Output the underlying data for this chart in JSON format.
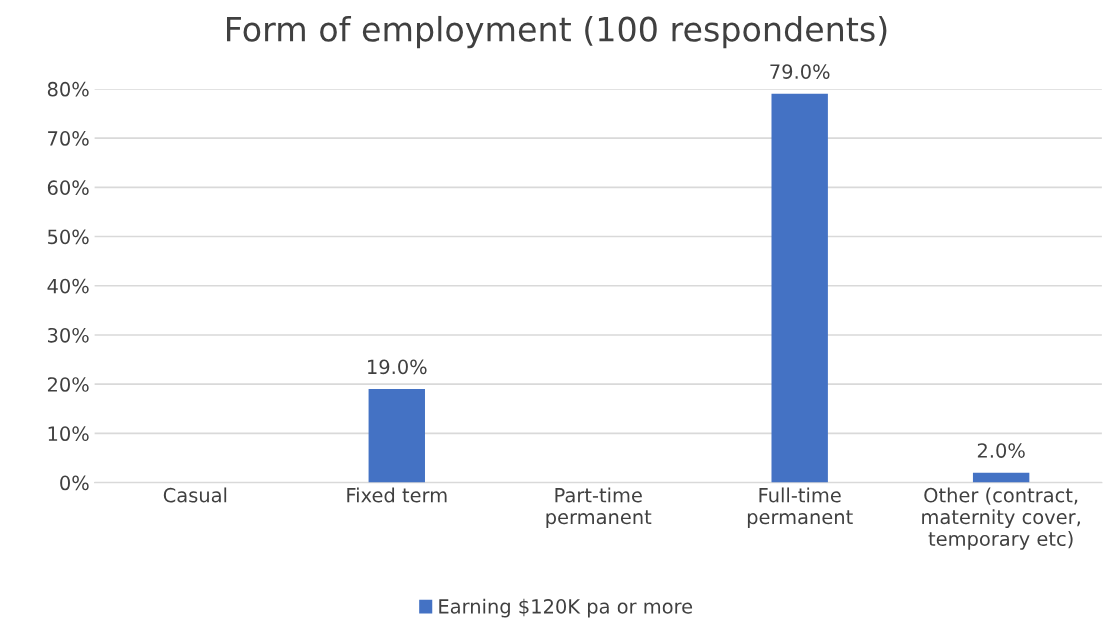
{
  "chart_data": {
    "type": "bar",
    "title": "Form of employment (100 respondents)",
    "categories": [
      "Casual",
      "Fixed term",
      "Part-time\npermanent",
      "Full-time\npermanent",
      "Other (contract,\nmaternity cover,\ntemporary etc)"
    ],
    "series": [
      {
        "name": "Earning $120K pa or more",
        "color": "#4472c4",
        "values": [
          0,
          19,
          0,
          79,
          2
        ],
        "value_labels": [
          null,
          "19.0%",
          null,
          "79.0%",
          "2.0%"
        ]
      }
    ],
    "ylim": [
      0,
      80
    ],
    "yticks": [
      {
        "value": 0,
        "label": "0%"
      },
      {
        "value": 10,
        "label": "10%"
      },
      {
        "value": 20,
        "label": "20%"
      },
      {
        "value": 30,
        "label": "30%"
      },
      {
        "value": 40,
        "label": "40%"
      },
      {
        "value": 50,
        "label": "50%"
      },
      {
        "value": 60,
        "label": "60%"
      },
      {
        "value": 70,
        "label": "70%"
      },
      {
        "value": 80,
        "label": "80%"
      }
    ],
    "grid": "y",
    "legend": "bottom"
  }
}
